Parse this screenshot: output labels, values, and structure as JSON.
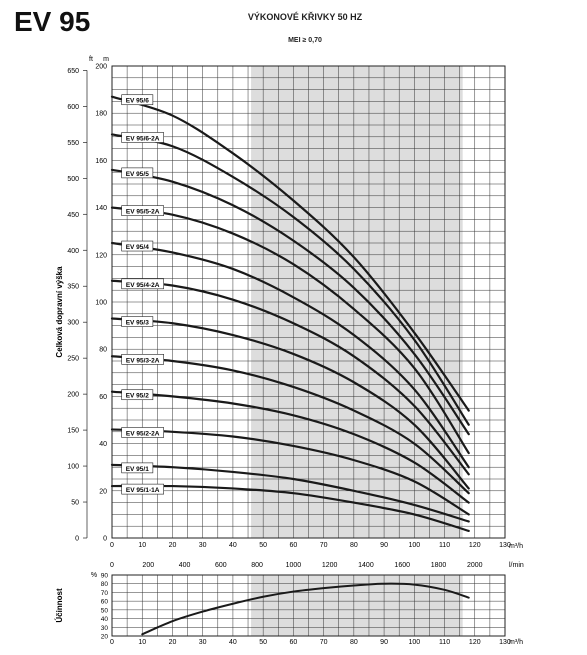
{
  "product": "EV 95",
  "title": "VÝKONOVÉ KŘIVKY 50 HZ",
  "subtitle": "MEI ≥ 0,70",
  "chart_data": [
    {
      "type": "line",
      "ylabel": "Celková dopravní výška",
      "y_unit_left": "ft",
      "y_unit_right": "m",
      "x_unit": "m³/h",
      "x2_unit": "l/min",
      "xlim": [
        0,
        130
      ],
      "ylim": [
        0,
        200
      ],
      "x_ticks": [
        0,
        10,
        20,
        30,
        40,
        50,
        60,
        70,
        80,
        90,
        100,
        110,
        120,
        130
      ],
      "x2_ticks": [
        0,
        200,
        400,
        600,
        800,
        1000,
        1200,
        1400,
        1600,
        1800,
        2000
      ],
      "y_ticks": [
        0,
        20,
        40,
        60,
        80,
        100,
        120,
        140,
        160,
        180,
        200
      ],
      "ft_ticks": [
        0,
        50,
        100,
        150,
        200,
        250,
        300,
        350,
        400,
        450,
        500,
        550,
        600,
        650
      ],
      "shaded_range": [
        46,
        116
      ],
      "grid": true,
      "series": [
        {
          "name": "EV 95/6",
          "x": [
            0,
            20,
            40,
            60,
            80,
            100,
            118
          ],
          "y": [
            187,
            179,
            163,
            143,
            119,
            87,
            54
          ]
        },
        {
          "name": "EV 95/6-2A",
          "x": [
            0,
            20,
            40,
            60,
            80,
            100,
            118
          ],
          "y": [
            171,
            166,
            153,
            136,
            114,
            84,
            48
          ]
        },
        {
          "name": "EV 95/5",
          "x": [
            0,
            20,
            40,
            60,
            80,
            100,
            118
          ],
          "y": [
            156,
            151,
            141,
            126,
            106,
            78,
            44
          ]
        },
        {
          "name": "EV 95/5-2A",
          "x": [
            0,
            20,
            40,
            60,
            80,
            100,
            118
          ],
          "y": [
            140,
            137,
            129,
            116,
            97,
            72,
            36
          ]
        },
        {
          "name": "EV 95/4",
          "x": [
            0,
            20,
            40,
            60,
            80,
            100,
            118
          ],
          "y": [
            125,
            121,
            114,
            102,
            86,
            63,
            30
          ]
        },
        {
          "name": "EV 95/4-2A",
          "x": [
            0,
            20,
            40,
            60,
            80,
            100,
            118
          ],
          "y": [
            109,
            107,
            101,
            91,
            77,
            56,
            27
          ]
        },
        {
          "name": "EV 95/3",
          "x": [
            0,
            20,
            40,
            60,
            80,
            100,
            118
          ],
          "y": [
            93,
            91,
            86,
            78,
            66,
            48,
            21
          ]
        },
        {
          "name": "EV 95/3-2A",
          "x": [
            0,
            20,
            40,
            60,
            80,
            100,
            118
          ],
          "y": [
            77,
            75,
            71,
            64,
            54,
            40,
            19
          ]
        },
        {
          "name": "EV 95/2",
          "x": [
            0,
            20,
            40,
            60,
            80,
            100,
            118
          ],
          "y": [
            62,
            60,
            57,
            52,
            44,
            32,
            15
          ]
        },
        {
          "name": "EV 95/2-2A",
          "x": [
            0,
            20,
            40,
            60,
            80,
            100,
            118
          ],
          "y": [
            46,
            45,
            43,
            39,
            33,
            24,
            10
          ]
        },
        {
          "name": "EV 95/1",
          "x": [
            0,
            20,
            40,
            60,
            80,
            100,
            118
          ],
          "y": [
            31,
            30,
            28,
            25,
            20,
            14,
            7
          ]
        },
        {
          "name": "EV 95/1-1A",
          "x": [
            0,
            20,
            40,
            60,
            80,
            100,
            118
          ],
          "y": [
            22,
            22,
            21,
            19,
            15,
            10,
            3
          ]
        }
      ]
    },
    {
      "type": "line",
      "ylabel": "Účinnost",
      "y_unit": "%",
      "x_unit": "m³/h",
      "xlim": [
        0,
        130
      ],
      "ylim": [
        20,
        90
      ],
      "x_ticks": [
        0,
        10,
        20,
        30,
        40,
        50,
        60,
        70,
        80,
        90,
        100,
        110,
        120,
        130
      ],
      "y_ticks": [
        20,
        30,
        40,
        50,
        60,
        70,
        80,
        90
      ],
      "shaded_range": [
        46,
        116
      ],
      "grid": true,
      "series": [
        {
          "name": "Účinnost",
          "x": [
            10,
            20,
            30,
            40,
            50,
            60,
            70,
            80,
            90,
            100,
            110,
            118
          ],
          "y": [
            22,
            37,
            48,
            57,
            65,
            71,
            75,
            78,
            80,
            79,
            73,
            64
          ]
        }
      ]
    }
  ]
}
